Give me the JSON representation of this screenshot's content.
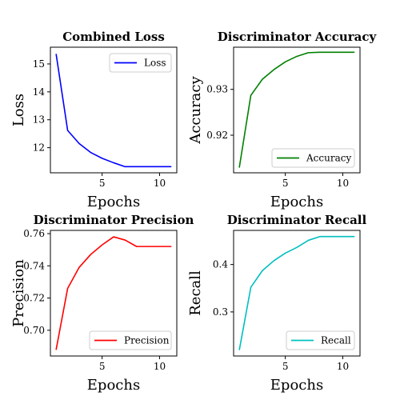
{
  "chart_data": [
    {
      "type": "line",
      "title": "Combined Loss",
      "xlabel": "Epochs",
      "ylabel": "Loss",
      "xlim": [
        0.5,
        11.5
      ],
      "ylim": [
        11.1,
        15.6
      ],
      "xticks": [
        5,
        10
      ],
      "yticks": [
        12,
        13,
        14,
        15
      ],
      "grid": false,
      "legend_loc": "top-right",
      "series": [
        {
          "name": "Loss",
          "color": "#0000ff",
          "x": [
            1,
            2,
            3,
            4,
            5,
            6,
            7,
            8,
            9,
            10,
            11
          ],
          "y": [
            15.35,
            12.62,
            12.15,
            11.83,
            11.62,
            11.46,
            11.32,
            11.32,
            11.32,
            11.32,
            11.32
          ]
        }
      ]
    },
    {
      "type": "line",
      "title": "Discriminator Accuracy",
      "xlabel": "Epochs",
      "ylabel": "Accuracy",
      "xlim": [
        0.5,
        11.5
      ],
      "ylim": [
        0.9118,
        0.9392
      ],
      "xticks": [
        5,
        10
      ],
      "yticks": [
        0.92,
        0.93
      ],
      "ytick_labels": [
        "0.92",
        "0.93"
      ],
      "grid": false,
      "legend_loc": "lower-right",
      "series": [
        {
          "name": "Accuracy",
          "color": "#008000",
          "x": [
            1,
            2,
            3,
            4,
            5,
            6,
            7,
            8,
            9,
            10,
            11
          ],
          "y": [
            0.913,
            0.9287,
            0.9322,
            0.9343,
            0.936,
            0.9372,
            0.938,
            0.9381,
            0.9381,
            0.9381,
            0.9381
          ]
        }
      ]
    },
    {
      "type": "line",
      "title": "Discriminator Precision",
      "xlabel": "Epochs",
      "ylabel": "Precision",
      "xlim": [
        0.5,
        11.5
      ],
      "ylim": [
        0.684,
        0.762
      ],
      "xticks": [
        5,
        10
      ],
      "yticks": [
        0.7,
        0.72,
        0.74,
        0.76
      ],
      "ytick_labels": [
        "0.70",
        "0.72",
        "0.74",
        "0.76"
      ],
      "grid": false,
      "legend_loc": "lower-right",
      "series": [
        {
          "name": "Precision",
          "color": "#ff0000",
          "x": [
            1,
            2,
            3,
            4,
            5,
            6,
            7,
            8,
            9,
            10,
            11
          ],
          "y": [
            0.688,
            0.726,
            0.739,
            0.747,
            0.753,
            0.758,
            0.756,
            0.752,
            0.752,
            0.752,
            0.752
          ]
        }
      ]
    },
    {
      "type": "line",
      "title": "Discriminator Recall",
      "xlabel": "Epochs",
      "ylabel": "Recall",
      "xlim": [
        0.5,
        11.5
      ],
      "ylim": [
        0.207,
        0.472
      ],
      "xticks": [
        5,
        10
      ],
      "yticks": [
        0.3,
        0.4
      ],
      "ytick_labels": [
        "0.3",
        "0.4"
      ],
      "grid": false,
      "legend_loc": "lower-right",
      "series": [
        {
          "name": "Recall",
          "color": "#00bfbf",
          "x": [
            1,
            2,
            3,
            4,
            5,
            6,
            7,
            8,
            9,
            10,
            11
          ],
          "y": [
            0.22,
            0.352,
            0.387,
            0.408,
            0.424,
            0.436,
            0.451,
            0.459,
            0.459,
            0.459,
            0.459
          ]
        }
      ]
    }
  ]
}
